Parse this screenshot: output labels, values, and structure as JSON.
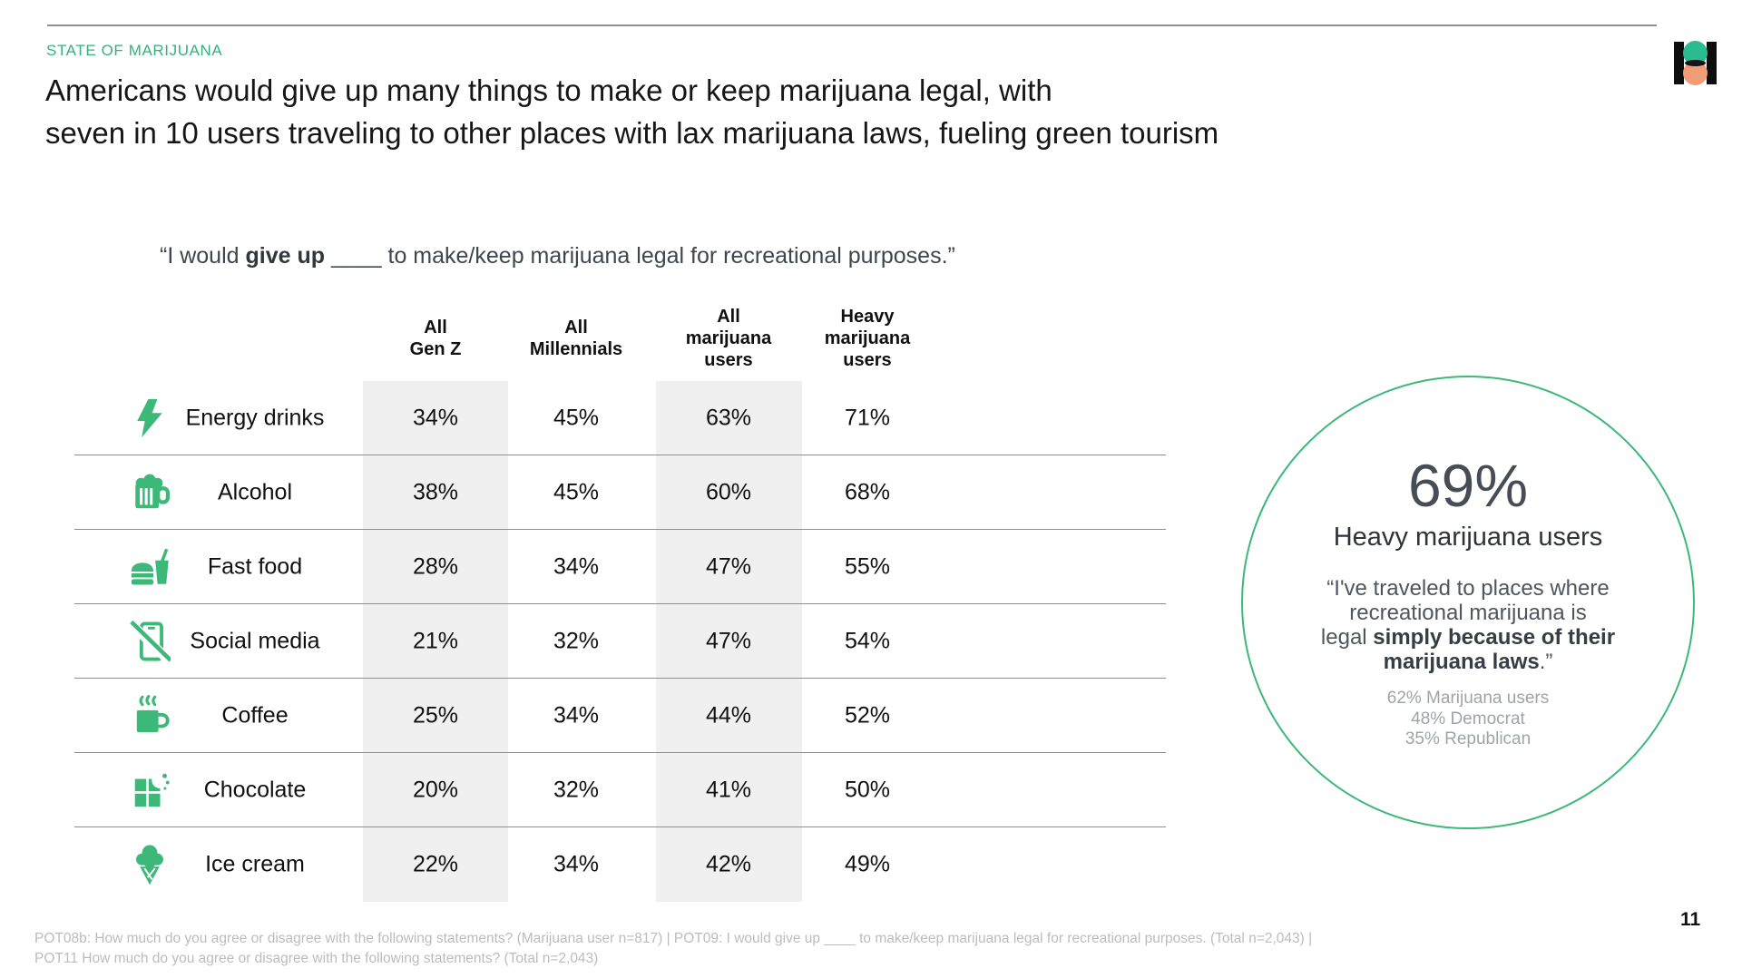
{
  "header": {
    "eyebrow": "STATE OF MARIJUANA",
    "title_line1": "Americans would give up many things to make or keep marijuana legal, with",
    "title_line2": "seven in 10 users traveling to other places with lax marijuana laws, fueling green tourism"
  },
  "colors": {
    "accent_green": "#3cb878",
    "logo_green": "#2abb90",
    "logo_salmon": "#f29b77",
    "column_band_gray": "#f0f0f0"
  },
  "survey_question": {
    "prefix": "“I would ",
    "bold": "give up",
    "suffix": " ____ to make/keep marijuana legal for recreational purposes.”"
  },
  "table": {
    "columns": [
      "All\nGen Z",
      "All\nMillennials",
      "All\nmarijuana\nusers",
      "Heavy\nmarijuana\nusers"
    ],
    "rows": [
      {
        "icon": "lightning-icon",
        "label": "Energy drinks",
        "values": [
          "34%",
          "45%",
          "63%",
          "71%"
        ]
      },
      {
        "icon": "beer-mug-icon",
        "label": "Alcohol",
        "values": [
          "38%",
          "45%",
          "60%",
          "68%"
        ]
      },
      {
        "icon": "fast-food-icon",
        "label": "Fast food",
        "values": [
          "28%",
          "34%",
          "47%",
          "55%"
        ]
      },
      {
        "icon": "phone-slash-icon",
        "label": "Social media",
        "values": [
          "21%",
          "32%",
          "47%",
          "54%"
        ]
      },
      {
        "icon": "coffee-mug-icon",
        "label": "Coffee",
        "values": [
          "25%",
          "34%",
          "44%",
          "52%"
        ]
      },
      {
        "icon": "chocolate-bar-icon",
        "label": "Chocolate",
        "values": [
          "20%",
          "32%",
          "41%",
          "50%"
        ]
      },
      {
        "icon": "ice-cream-icon",
        "label": "Ice cream",
        "values": [
          "22%",
          "34%",
          "42%",
          "49%"
        ]
      }
    ]
  },
  "highlight_circle": {
    "value": "69%",
    "group": "Heavy marijuana users",
    "quote_line1": "“I've traveled to places where",
    "quote_line2": "recreational marijuana is",
    "quote_line3_regular": "legal ",
    "quote_line3_bold": "simply because of their",
    "quote_line4_bold": "marijuana laws",
    "quote_line4_suffix": ".”",
    "stats": [
      "62% Marijuana users",
      "48% Democrat",
      "35% Republican"
    ]
  },
  "footer": {
    "note_line1": "POT08b: How much do you agree or disagree with the following statements? (Marijuana user n=817) | POT09: I would give up ____ to make/keep marijuana legal for recreational purposes. (Total n=2,043) |",
    "note_line2": "POT11 How much do you agree or disagree with the following statements? (Total n=2,043)",
    "page_number": "11"
  }
}
